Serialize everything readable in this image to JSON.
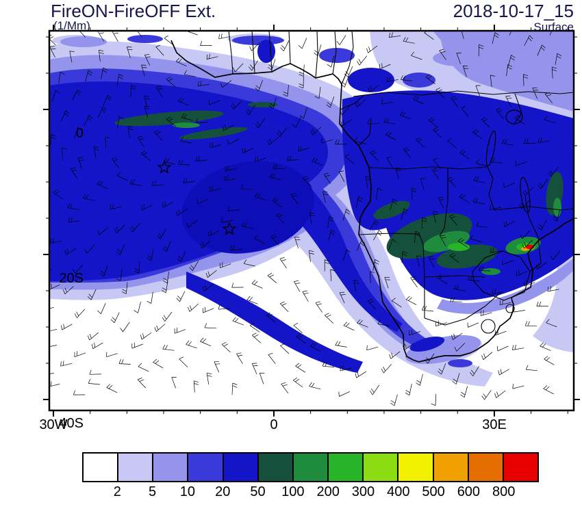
{
  "header": {
    "title": "FireON-FireOFF Ext.",
    "units": "(1/Mm)",
    "datetime": "2018-10-17_15",
    "level": "Surface"
  },
  "colors": {
    "ink": "#000000",
    "header_text": "#16164e",
    "map_background": "#ffffff"
  },
  "chart_data": {
    "type": "heatmap",
    "title": "FireON-FireOFF Ext.",
    "subtitle": "Surface",
    "units": "1/Mm",
    "datetime": "2018-10-17_15",
    "projection": "cylindrical lat-lon map of the South Atlantic and southern Africa",
    "x_axis": {
      "ticks": [
        "30W",
        "0",
        "30E"
      ],
      "range_deg_east": [
        -30,
        41
      ],
      "minor_tick_deg": 5
    },
    "y_axis": {
      "ticks": [
        "0",
        "20S",
        "40S"
      ],
      "range_deg_north": [
        -41,
        11
      ],
      "minor_tick_deg": 5
    },
    "colorbar": {
      "levels": [
        2,
        5,
        10,
        20,
        50,
        100,
        200,
        300,
        400,
        500,
        600,
        800
      ],
      "colors": [
        "#ffffff",
        "#c8c8f5",
        "#9494ec",
        "#3a3ada",
        "#1414c8",
        "#14503c",
        "#1e8c3c",
        "#28b428",
        "#8cdc14",
        "#f0f000",
        "#f0a000",
        "#e66e00",
        "#e60000"
      ]
    },
    "overlays": {
      "wind_barbs": true,
      "coastlines": true,
      "country_borders": true,
      "station_markers": [
        {
          "symbol": "star",
          "lon": "15W",
          "lat": "8S"
        },
        {
          "symbol": "star",
          "lon": "6W",
          "lat": "17S"
        }
      ]
    },
    "regions": [
      {
        "area": "South Atlantic smoke plume",
        "extent": "28W-10E, 2N-25S",
        "value_range_1_per_Mm": "20-50"
      },
      {
        "area": "plume dark core",
        "extent": "20W-5W, 5S-18S",
        "value_range_1_per_Mm": "20-50"
      },
      {
        "area": "central and southern Africa",
        "extent": "10E-40E, 2S-28S",
        "value_range_1_per_Mm": "20-50"
      },
      {
        "area": "Angola-Zambia enhanced patches",
        "extent": "14E-28E, 8S-18S",
        "value_range_1_per_Mm": "50-400"
      },
      {
        "area": "Mozambique hotspot",
        "extent": "near 33E, 19S",
        "value_range_1_per_Mm": "400-800+"
      },
      {
        "area": "SE-trailing tongue and plume fringes",
        "extent": "outer edges of plume",
        "value_range_1_per_Mm": "2-10"
      },
      {
        "area": "southwest ocean sector and far south",
        "extent": "below ~28S west of 15E",
        "value_range_1_per_Mm": "< 2"
      }
    ]
  },
  "axis_labels": {
    "y": [
      "0",
      "20S",
      "40S"
    ],
    "x": [
      "30W",
      "0",
      "30E"
    ]
  }
}
